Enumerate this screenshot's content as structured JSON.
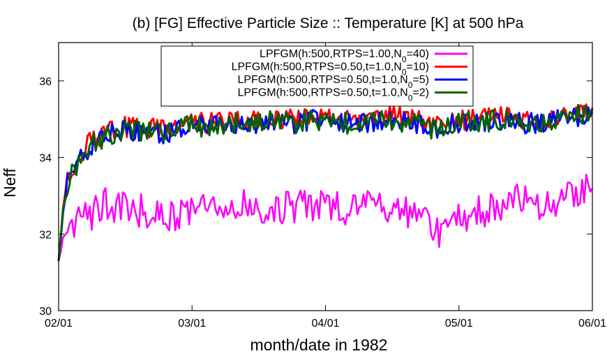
{
  "chart_data": {
    "type": "line",
    "title": "(b) [FG] Effective Particle Size :: Temperature [K] at 500 hPa",
    "xlabel": "month/date in 1982",
    "ylabel": "Neff",
    "x_tick_labels": [
      "02/01",
      "03/01",
      "04/01",
      "05/01",
      "06/01"
    ],
    "x_range": [
      "1982-02-01",
      "1982-06-01"
    ],
    "y_ticks": [
      30,
      32,
      34,
      36
    ],
    "ylim": [
      30,
      37
    ],
    "grid": false,
    "legend_position": "top-center",
    "series": [
      {
        "name": "LPFGM(h:500,RTPS=1.00,N",
        "sub": "0",
        "suffix": "=40)",
        "color": "#ff00ff",
        "x": [
          "1982-02-01",
          "1982-02-02",
          "1982-02-03",
          "1982-02-05",
          "1982-02-08",
          "1982-02-12",
          "1982-02-15",
          "1982-02-20",
          "1982-02-25",
          "1982-03-01",
          "1982-03-06",
          "1982-03-11",
          "1982-03-16",
          "1982-03-21",
          "1982-03-26",
          "1982-04-01",
          "1982-04-06",
          "1982-04-11",
          "1982-04-16",
          "1982-04-21",
          "1982-04-24",
          "1982-04-28",
          "1982-05-01",
          "1982-05-06",
          "1982-05-11",
          "1982-05-16",
          "1982-05-21",
          "1982-05-26",
          "1982-06-01"
        ],
        "values": [
          31.3,
          31.8,
          32.2,
          32.3,
          32.5,
          32.8,
          32.7,
          32.6,
          32.4,
          32.5,
          32.7,
          32.6,
          32.8,
          32.7,
          32.7,
          32.8,
          32.6,
          32.7,
          32.6,
          32.6,
          32.3,
          32.0,
          32.3,
          32.6,
          32.6,
          32.9,
          32.8,
          33.0,
          33.2
        ]
      },
      {
        "name": "LPFGM(h:500,RTPS=0.50,t=1.0,N",
        "sub": "0",
        "suffix": "=10)",
        "color": "#ff0000",
        "x": [
          "1982-02-01",
          "1982-02-02",
          "1982-02-03",
          "1982-02-05",
          "1982-02-08",
          "1982-02-12",
          "1982-02-15",
          "1982-02-20",
          "1982-02-25",
          "1982-03-01",
          "1982-03-06",
          "1982-03-11",
          "1982-03-16",
          "1982-03-21",
          "1982-03-26",
          "1982-04-01",
          "1982-04-06",
          "1982-04-11",
          "1982-04-16",
          "1982-04-21",
          "1982-04-24",
          "1982-04-28",
          "1982-05-01",
          "1982-05-06",
          "1982-05-11",
          "1982-05-16",
          "1982-05-21",
          "1982-05-26",
          "1982-06-01"
        ],
        "values": [
          31.3,
          32.6,
          33.4,
          33.9,
          34.4,
          34.7,
          34.8,
          34.8,
          34.7,
          34.9,
          34.9,
          35.0,
          35.0,
          35.0,
          35.0,
          35.1,
          35.0,
          35.0,
          35.1,
          35.0,
          34.9,
          34.8,
          35.0,
          35.0,
          35.1,
          35.0,
          35.0,
          35.1,
          35.3
        ]
      },
      {
        "name": "LPFGM(h:500,RTPS=0.50,t=1.0,N",
        "sub": "0",
        "suffix": "=5)",
        "color": "#0000ff",
        "x": [
          "1982-02-01",
          "1982-02-02",
          "1982-02-03",
          "1982-02-05",
          "1982-02-08",
          "1982-02-12",
          "1982-02-15",
          "1982-02-20",
          "1982-02-25",
          "1982-03-01",
          "1982-03-06",
          "1982-03-11",
          "1982-03-16",
          "1982-03-21",
          "1982-03-26",
          "1982-04-01",
          "1982-04-06",
          "1982-04-11",
          "1982-04-16",
          "1982-04-21",
          "1982-04-24",
          "1982-04-28",
          "1982-05-01",
          "1982-05-06",
          "1982-05-11",
          "1982-05-16",
          "1982-05-21",
          "1982-05-26",
          "1982-06-01"
        ],
        "values": [
          31.3,
          32.5,
          33.3,
          33.8,
          34.3,
          34.6,
          34.7,
          34.7,
          34.6,
          34.8,
          34.8,
          34.9,
          34.9,
          34.9,
          34.9,
          35.0,
          34.9,
          34.9,
          35.0,
          34.9,
          34.8,
          34.7,
          34.9,
          34.9,
          35.0,
          34.9,
          34.9,
          35.0,
          35.2
        ]
      },
      {
        "name": "LPFGM(h:500,RTPS=0.50,t=1.0,N",
        "sub": "0",
        "suffix": "=2)",
        "color": "#006400",
        "x": [
          "1982-02-01",
          "1982-02-02",
          "1982-02-03",
          "1982-02-05",
          "1982-02-08",
          "1982-02-12",
          "1982-02-15",
          "1982-02-20",
          "1982-02-25",
          "1982-03-01",
          "1982-03-06",
          "1982-03-11",
          "1982-03-16",
          "1982-03-21",
          "1982-03-26",
          "1982-04-01",
          "1982-04-06",
          "1982-04-11",
          "1982-04-16",
          "1982-04-21",
          "1982-04-24",
          "1982-04-28",
          "1982-05-01",
          "1982-05-06",
          "1982-05-11",
          "1982-05-16",
          "1982-05-21",
          "1982-05-26",
          "1982-06-01"
        ],
        "values": [
          31.3,
          32.6,
          33.3,
          33.8,
          34.3,
          34.6,
          34.7,
          34.7,
          34.6,
          34.9,
          34.8,
          34.9,
          34.9,
          35.0,
          34.9,
          35.0,
          34.9,
          34.9,
          35.0,
          34.9,
          34.8,
          34.7,
          34.9,
          34.9,
          35.0,
          34.9,
          34.9,
          35.0,
          35.2
        ]
      }
    ]
  }
}
